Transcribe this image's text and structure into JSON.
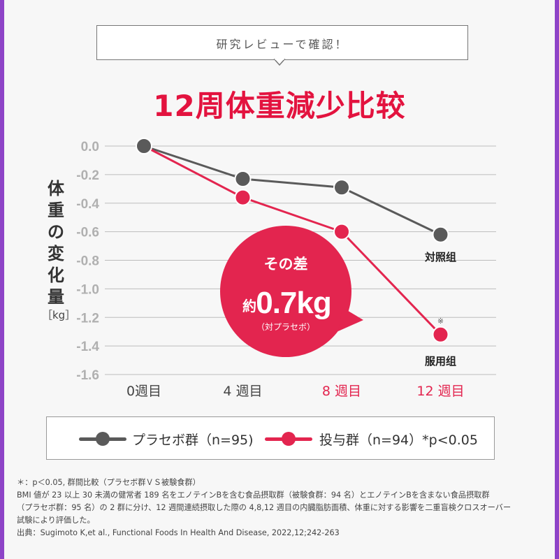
{
  "header": {
    "banner": "研究レビューで確認！",
    "title": "12周体重減少比较"
  },
  "axis": {
    "ylabel": "体重の変化量",
    "yunit": "［kg］"
  },
  "callout": {
    "line1": "その差",
    "prefix": "約",
    "value": "0.7kg",
    "note": "（対プラセボ）"
  },
  "colors": {
    "control": "#5a5a5a",
    "treatment": "#e3254f",
    "title": "#e3133f"
  },
  "chart_data": {
    "type": "line",
    "title": "12周体重減少比较",
    "ylabel": "体重の変化量［kg］",
    "xlabel": "",
    "categories": [
      "0週目",
      "4 週目",
      "8 週目",
      "12 週目"
    ],
    "highlighted_categories": [
      "8 週目",
      "12 週目"
    ],
    "ylim": [
      -1.6,
      0.0
    ],
    "yticks": [
      "0.0",
      "-0.2",
      "-0.4",
      "-0.6",
      "-0.8",
      "-1.0",
      "-1.2",
      "-1.4",
      "-1.6"
    ],
    "grid": true,
    "series": [
      {
        "name": "プラセボ群（n=95)",
        "end_label": "対照组",
        "values": [
          0.0,
          -0.23,
          -0.29,
          -0.62
        ]
      },
      {
        "name": "投与群（n=94）*p<0.05",
        "end_label": "服用组",
        "end_mark": "※",
        "values": [
          0.0,
          -0.36,
          -0.6,
          -1.32
        ]
      }
    ]
  },
  "legend": {
    "control": "プラセボ群（n=95)",
    "treatment": "投与群（n=94）*p<0.05"
  },
  "notes": [
    "＊：p＜0.05, 群間比較（プラセボ群ＶＳ被験食群）",
    "BMI 値が 23 以上 30 未満の健常者 189 名をエノテインBを含む食品摂取群（被験食群：94 名）とエノテインBを含まない食品摂取群",
    "（プラセボ群：95 名）の 2 群に分け、12 週間連続摂取した際の 4,8,12 週目の内臓脂肪面積、体重に対する影響を二重盲検クロスオーバー",
    "試験により評価した。",
    "出典：Sugimoto K,et al., Functional Foods In Health And Disease, 2022,12;242-263"
  ]
}
